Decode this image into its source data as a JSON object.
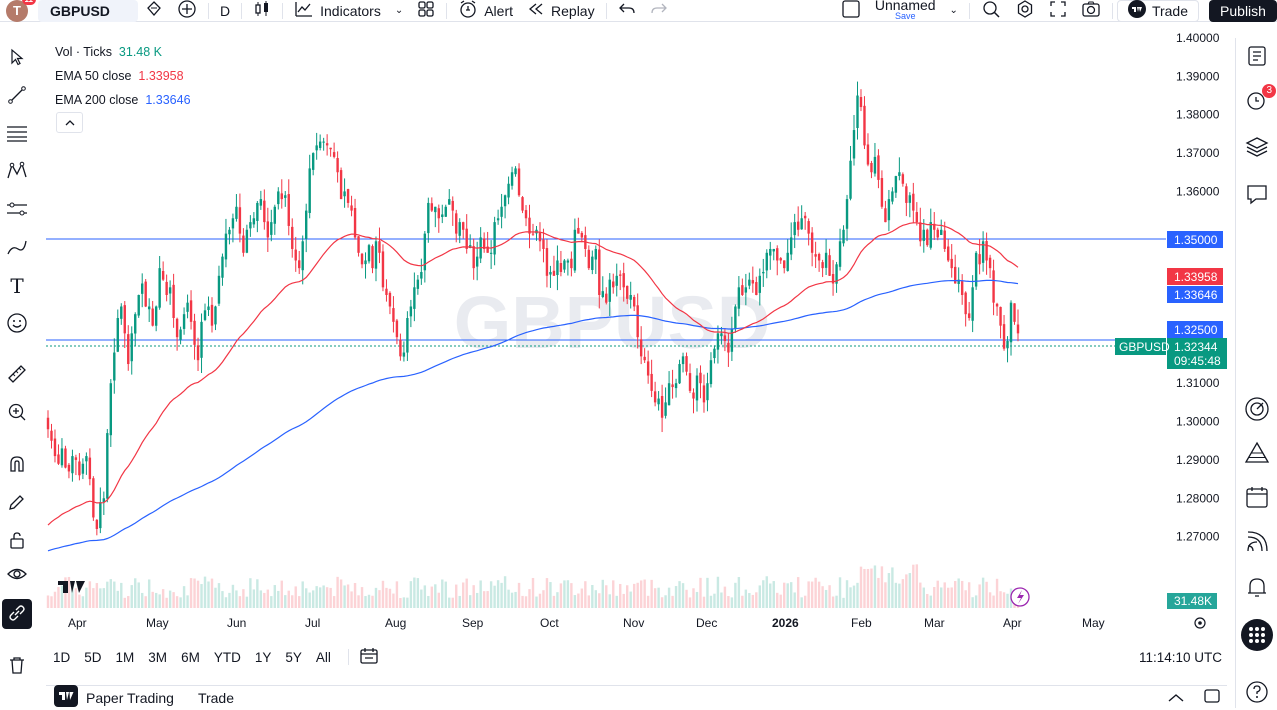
{
  "toolbar": {
    "avatar_letter": "T",
    "avatar_badge": "11",
    "symbol": "GBPUSD",
    "interval": "D",
    "indicators": "Indicators",
    "alert": "Alert",
    "replay": "Replay",
    "layout_name": "Unnamed",
    "save": "Save",
    "trade": "Trade",
    "publish": "Publish"
  },
  "legend": {
    "vol_label": "Vol · Ticks",
    "vol_value": "31.48 K",
    "ema50_label": "EMA 50 close",
    "ema50_value": "1.33958",
    "ema200_label": "EMA 200 close",
    "ema200_value": "1.33646"
  },
  "watermark": "GBPUSD",
  "price_axis": [
    "1.40000",
    "1.39000",
    "1.38000",
    "1.37000",
    "1.36000",
    "1.31000",
    "1.30000",
    "1.29000",
    "1.28000",
    "1.27000"
  ],
  "price_tags": {
    "level_1": "1.35000",
    "ema50": "1.33958",
    "ema200": "1.33646",
    "level_2": "1.32500",
    "last_price": "1.32344",
    "countdown": "09:45:48",
    "symbol_tag": "GBPUSD",
    "volume": "31.48K"
  },
  "time_axis": [
    "Apr",
    "May",
    "Jun",
    "Jul",
    "Aug",
    "Sep",
    "Oct",
    "Nov",
    "Dec",
    "2026",
    "Feb",
    "Mar",
    "Apr",
    "May"
  ],
  "ranges": [
    "1D",
    "5D",
    "1M",
    "3M",
    "6M",
    "YTD",
    "1Y",
    "5Y",
    "All"
  ],
  "clock": "11:14:10 UTC",
  "bottom": {
    "paper_trading": "Paper Trading",
    "trade": "Trade"
  },
  "alerts_badge": "3",
  "colors": {
    "up": "#089981",
    "down": "#f23645",
    "ema50": "#f23645",
    "ema200": "#2962ff",
    "hline": "#2962ff",
    "last": "#089981"
  },
  "chart_data": {
    "type": "candlestick",
    "symbol": "GBPUSD",
    "ylim": [
      1.265,
      1.402
    ],
    "horizontal_lines": [
      1.35,
      1.325
    ],
    "last_price": 1.32344,
    "ema50_last": 1.33958,
    "ema200_last": 1.33646,
    "closes": [
      1.298,
      1.295,
      1.291,
      1.289,
      1.293,
      1.288,
      1.287,
      1.291,
      1.29,
      1.286,
      1.289,
      1.291,
      1.285,
      1.275,
      1.272,
      1.279,
      1.28,
      1.297,
      1.31,
      1.318,
      1.327,
      1.33,
      1.323,
      1.315,
      1.323,
      1.328,
      1.333,
      1.336,
      1.33,
      1.33,
      1.325,
      1.33,
      1.34,
      1.337,
      1.333,
      1.335,
      1.327,
      1.322,
      1.324,
      1.328,
      1.331,
      1.326,
      1.32,
      1.316,
      1.326,
      1.329,
      1.33,
      1.325,
      1.33,
      1.338,
      1.343,
      1.349,
      1.35,
      1.353,
      1.356,
      1.349,
      1.344,
      1.35,
      1.352,
      1.353,
      1.357,
      1.358,
      1.352,
      1.348,
      1.352,
      1.356,
      1.36,
      1.358,
      1.359,
      1.351,
      1.345,
      1.342,
      1.34,
      1.347,
      1.355,
      1.366,
      1.37,
      1.372,
      1.373,
      1.373,
      1.372,
      1.371,
      1.369,
      1.365,
      1.358,
      1.36,
      1.357,
      1.355,
      1.348,
      1.344,
      1.341,
      1.342,
      1.346,
      1.34,
      1.347,
      1.344,
      1.335,
      1.333,
      1.33,
      1.326,
      1.322,
      1.317,
      1.318,
      1.327,
      1.33,
      1.335,
      1.337,
      1.339,
      1.349,
      1.357,
      1.355,
      1.356,
      1.353,
      1.354,
      1.356,
      1.358,
      1.355,
      1.349,
      1.352,
      1.35,
      1.345,
      1.346,
      1.34,
      1.343,
      1.348,
      1.345,
      1.344,
      1.344,
      1.352,
      1.353,
      1.356,
      1.359,
      1.362,
      1.365,
      1.366,
      1.359,
      1.355,
      1.353,
      1.349,
      1.349,
      1.35,
      1.347,
      1.345,
      1.338,
      1.339,
      1.338,
      1.342,
      1.339,
      1.342,
      1.342,
      1.34,
      1.35,
      1.349,
      1.348,
      1.345,
      1.34,
      1.343,
      1.345,
      1.333,
      1.334,
      1.331,
      1.337,
      1.335,
      1.338,
      1.338,
      1.335,
      1.332,
      1.333,
      1.33,
      1.322,
      1.317,
      1.316,
      1.312,
      1.308,
      1.305,
      1.306,
      1.301,
      1.305,
      1.31,
      1.309,
      1.31,
      1.315,
      1.317,
      1.313,
      1.308,
      1.306,
      1.312,
      1.31,
      1.305,
      1.31,
      1.316,
      1.319,
      1.323,
      1.323,
      1.321,
      1.318,
      1.324,
      1.33,
      1.335,
      1.333,
      1.335,
      1.337,
      1.336,
      1.333,
      1.338,
      1.339,
      1.344,
      1.345,
      1.345,
      1.342,
      1.342,
      1.34,
      1.344,
      1.348,
      1.352,
      1.35,
      1.353,
      1.353,
      1.349,
      1.344,
      1.343,
      1.342,
      1.34,
      1.344,
      1.338,
      1.336,
      1.341,
      1.347,
      1.35,
      1.358,
      1.368,
      1.376,
      1.385,
      1.382,
      1.372,
      1.367,
      1.365,
      1.369,
      1.363,
      1.356,
      1.352,
      1.358,
      1.36,
      1.364,
      1.365,
      1.362,
      1.357,
      1.359,
      1.355,
      1.352,
      1.347,
      1.35,
      1.346,
      1.352,
      1.35,
      1.348,
      1.35,
      1.345,
      1.342,
      1.34,
      1.336,
      1.337,
      1.333,
      1.328,
      1.327,
      1.335,
      1.344,
      1.341,
      1.347,
      1.342,
      1.34,
      1.331,
      1.33,
      1.325,
      1.319,
      1.321,
      1.331,
      1.326,
      1.323
    ]
  }
}
